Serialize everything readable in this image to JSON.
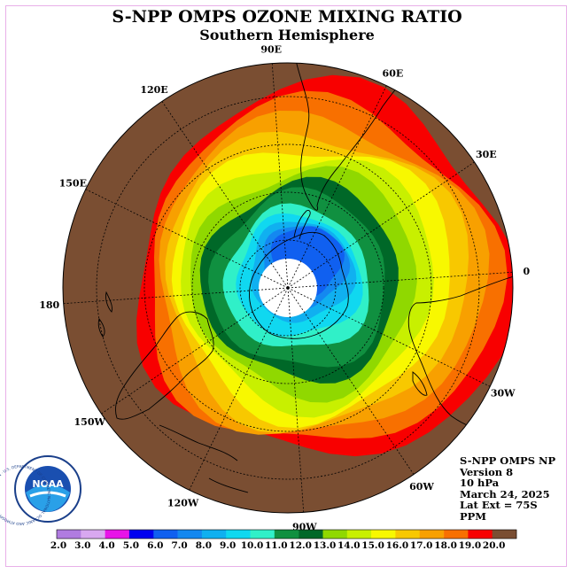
{
  "title": "S-NPP OMPS OZONE MIXING RATIO",
  "subtitle": "Southern Hemisphere",
  "logo_text": "NOAA",
  "logo_ring_text": "NATIONAL OCEANIC AND ATMOSPHERIC ADMINISTRATION · U.S. DEPARTMENT OF COMMERCE",
  "info": {
    "product": "S-NPP OMPS NP",
    "version": "Version 8",
    "level": "10 hPa",
    "date": "March 24, 2025",
    "lat_ext": "Lat Ext = 75S",
    "units": "PPM"
  },
  "longitude_labels": [
    {
      "text": "90W",
      "lon": -90
    },
    {
      "text": "60W",
      "lon": -60
    },
    {
      "text": "30W",
      "lon": -30
    },
    {
      "text": "0",
      "lon": 0
    },
    {
      "text": "30E",
      "lon": 30
    },
    {
      "text": "60E",
      "lon": 60
    },
    {
      "text": "90E",
      "lon": 90
    },
    {
      "text": "120E",
      "lon": 120
    },
    {
      "text": "150E",
      "lon": 150
    },
    {
      "text": "180",
      "lon": 180
    },
    {
      "text": "150W",
      "lon": -150
    },
    {
      "text": "120W",
      "lon": -120
    }
  ],
  "colorbar": {
    "labels": [
      "2.0",
      "3.0",
      "4.0",
      "5.0",
      "6.0",
      "7.0",
      "8.0",
      "9.0",
      "10.0",
      "11.0",
      "12.0",
      "13.0",
      "14.0",
      "15.0",
      "16.0",
      "17.0",
      "18.0",
      "19.0",
      "20.0"
    ],
    "colors": [
      "#b07ce0",
      "#d8a8f0",
      "#e814e8",
      "#0000f0",
      "#1060f0",
      "#1488f0",
      "#10b0f0",
      "#10d8f0",
      "#30f0c8",
      "#109040",
      "#006828",
      "#90d800",
      "#c8f000",
      "#f8f800",
      "#f8c800",
      "#f8a000",
      "#f87000",
      "#f80000",
      "#7a4e32"
    ]
  },
  "ozone_levels": [
    {
      "value": 20.0,
      "color": "#7a4e32"
    },
    {
      "value": 19.0,
      "color": "#f80000"
    },
    {
      "value": 18.0,
      "color": "#f87000"
    },
    {
      "value": 17.0,
      "color": "#f8a000"
    },
    {
      "value": 16.0,
      "color": "#f8c800"
    },
    {
      "value": 15.0,
      "color": "#f8f800"
    },
    {
      "value": 14.0,
      "color": "#c8f000"
    },
    {
      "value": 13.0,
      "color": "#90d800"
    },
    {
      "value": 12.0,
      "color": "#006828"
    },
    {
      "value": 11.0,
      "color": "#109040"
    },
    {
      "value": 10.0,
      "color": "#30f0c8"
    },
    {
      "value": 9.0,
      "color": "#10d8f0"
    },
    {
      "value": 8.0,
      "color": "#10b0f0"
    },
    {
      "value": 7.0,
      "color": "#1488f0"
    },
    {
      "value": 6.0,
      "color": "#1060f0"
    }
  ],
  "no_data_color": "#ffffff"
}
